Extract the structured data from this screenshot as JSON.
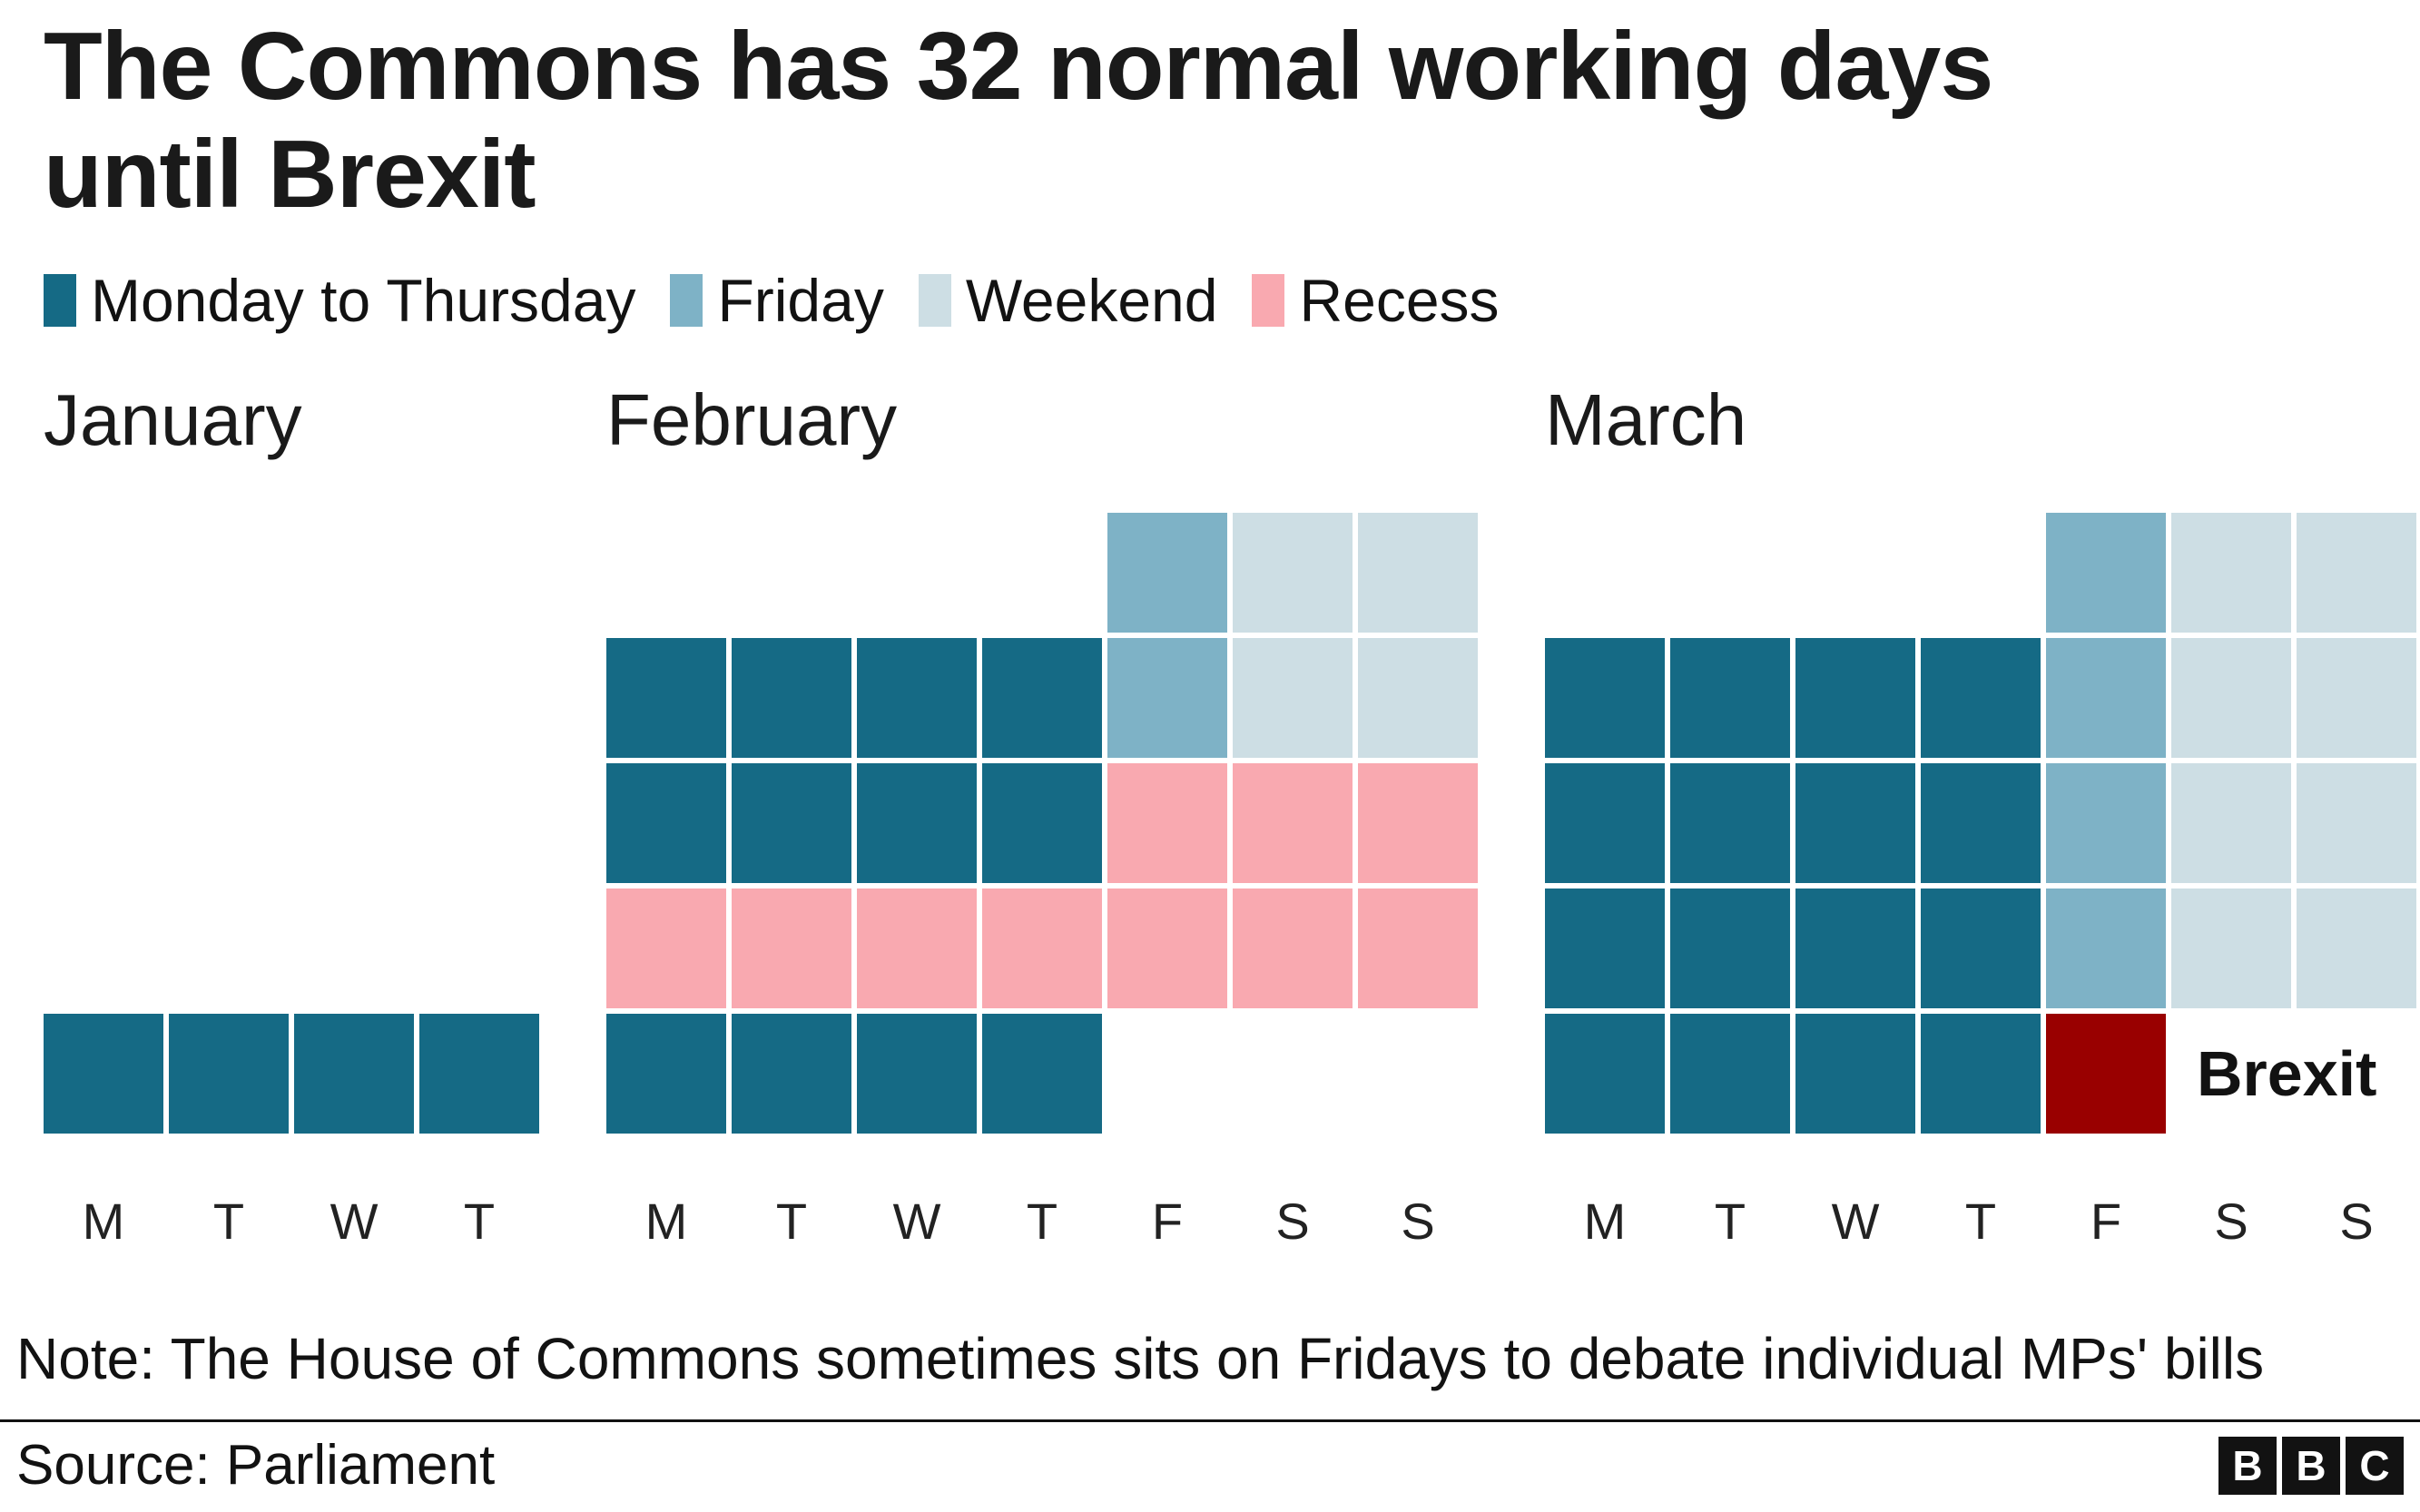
{
  "title": "The Commons has 32 normal working days until Brexit",
  "title_lines": [
    "The Commons has 32 normal working days",
    "until Brexit"
  ],
  "legend": {
    "items": [
      {
        "label": "Monday to Thursday",
        "type": "sitting"
      },
      {
        "label": "Friday",
        "type": "friday"
      },
      {
        "label": "Weekend",
        "type": "weekend"
      },
      {
        "label": "Recess",
        "type": "recess"
      }
    ]
  },
  "colors": {
    "sitting": "#156a85",
    "friday": "#7eb2c6",
    "weekend": "#cddee4",
    "recess": "#f9a9b0",
    "brexit": "#990000",
    "empty": "transparent"
  },
  "chart_data": {
    "type": "heatmap",
    "title": "The Commons has 32 normal working days until Brexit",
    "legend_entries": [
      "Monday to Thursday",
      "Friday",
      "Weekend",
      "Recess"
    ],
    "normal_working_days_total": 32,
    "months": [
      {
        "name": "January",
        "day_labels": [
          "M",
          "T",
          "W",
          "T"
        ],
        "grid": [
          [
            "empty",
            "empty",
            "empty",
            "empty"
          ],
          [
            "empty",
            "empty",
            "empty",
            "empty"
          ],
          [
            "empty",
            "empty",
            "empty",
            "empty"
          ],
          [
            "empty",
            "empty",
            "empty",
            "empty"
          ],
          [
            "sitting",
            "sitting",
            "sitting",
            "sitting"
          ]
        ]
      },
      {
        "name": "February",
        "day_labels": [
          "M",
          "T",
          "W",
          "T",
          "F",
          "S",
          "S"
        ],
        "grid": [
          [
            "empty",
            "empty",
            "empty",
            "empty",
            "friday",
            "weekend",
            "weekend"
          ],
          [
            "sitting",
            "sitting",
            "sitting",
            "sitting",
            "friday",
            "weekend",
            "weekend"
          ],
          [
            "sitting",
            "sitting",
            "sitting",
            "sitting",
            "recess",
            "recess",
            "recess"
          ],
          [
            "recess",
            "recess",
            "recess",
            "recess",
            "recess",
            "recess",
            "recess"
          ],
          [
            "sitting",
            "sitting",
            "sitting",
            "sitting",
            "empty",
            "empty",
            "empty"
          ]
        ]
      },
      {
        "name": "March",
        "day_labels": [
          "M",
          "T",
          "W",
          "T",
          "F",
          "S",
          "S"
        ],
        "annotation": "Brexit",
        "grid": [
          [
            "empty",
            "empty",
            "empty",
            "empty",
            "friday",
            "weekend",
            "weekend"
          ],
          [
            "sitting",
            "sitting",
            "sitting",
            "sitting",
            "friday",
            "weekend",
            "weekend"
          ],
          [
            "sitting",
            "sitting",
            "sitting",
            "sitting",
            "friday",
            "weekend",
            "weekend"
          ],
          [
            "sitting",
            "sitting",
            "sitting",
            "sitting",
            "friday",
            "weekend",
            "weekend"
          ],
          [
            "sitting",
            "sitting",
            "sitting",
            "sitting",
            "brexit",
            "label",
            "empty"
          ]
        ]
      }
    ]
  },
  "note": "Note: The House of Commons sometimes sits on Fridays to debate individual MPs' bills",
  "source": "Source: Parliament",
  "logo": {
    "letters": [
      "B",
      "B",
      "C"
    ]
  }
}
